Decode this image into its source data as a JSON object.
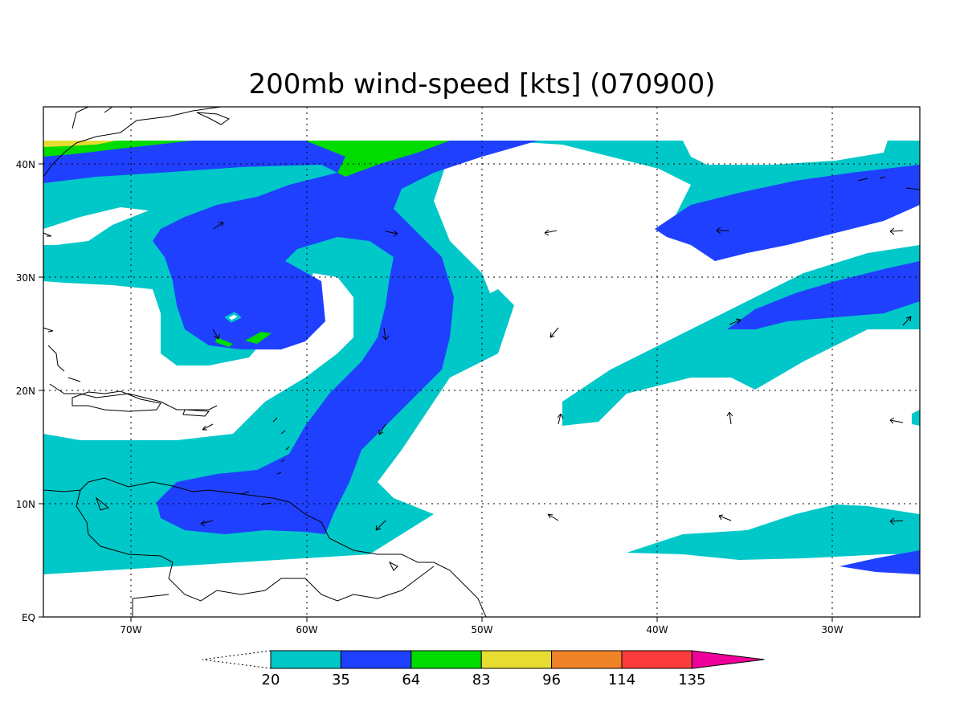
{
  "title": "200mb wind-speed [kts] (070900)",
  "x_ticks": [
    "70W",
    "60W",
    "50W",
    "40W",
    "30W"
  ],
  "y_ticks": [
    "EQ",
    "10N",
    "20N",
    "30N",
    "40N"
  ],
  "colorbar": {
    "labels": [
      "20",
      "35",
      "64",
      "83",
      "96",
      "114",
      "135"
    ],
    "colors": [
      "#00c8c8",
      "#2040ff",
      "#00dc00",
      "#e6dc32",
      "#f08228",
      "#fa3c3c",
      "#f0009a"
    ]
  },
  "map": {
    "lon_range": [
      -75,
      -25
    ],
    "lat_range": [
      0,
      45
    ],
    "projection": "cylindrical",
    "grid": "dotted"
  }
}
